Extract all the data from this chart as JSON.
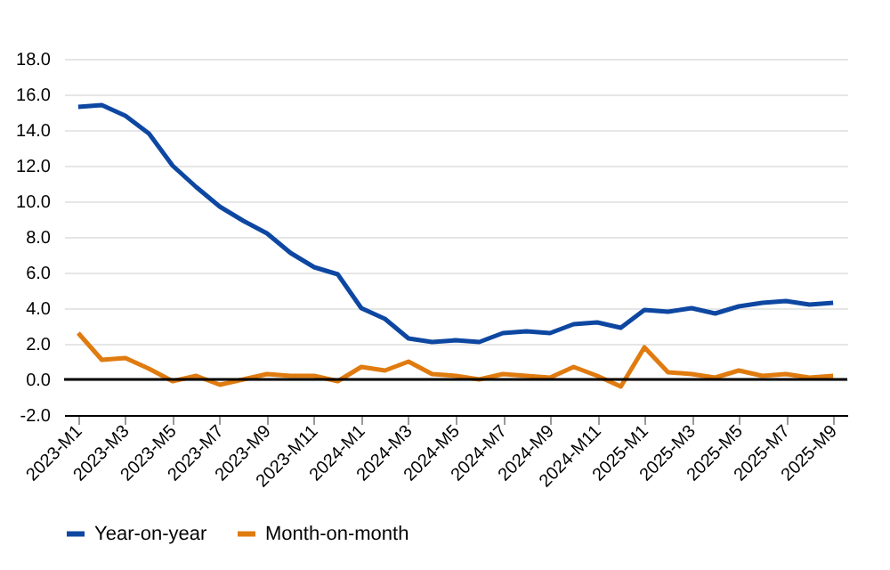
{
  "chart_data": {
    "type": "line",
    "categories": [
      "2023-M1",
      null,
      "2023-M3",
      null,
      "2023-M5",
      null,
      "2023-M7",
      null,
      "2023-M9",
      null,
      "2023-M11",
      null,
      "2024-M1",
      null,
      "2024-M3",
      null,
      "2024-M5",
      null,
      "2024-M7",
      null,
      "2024-M9",
      null,
      "2024-M11",
      null,
      "2025-M1",
      null,
      "2025-M3",
      null,
      "2025-M5",
      null,
      "2025-M7",
      null,
      "2025-M9"
    ],
    "series": [
      {
        "name": "Year-on-year",
        "color": "#0d47a1",
        "values": [
          15.3,
          15.4,
          14.8,
          13.8,
          12.0,
          10.8,
          9.7,
          8.9,
          8.2,
          7.1,
          6.3,
          5.9,
          4.0,
          3.4,
          2.3,
          2.1,
          2.2,
          2.1,
          2.6,
          2.7,
          2.6,
          3.1,
          3.2,
          2.9,
          3.9,
          3.8,
          4.0,
          3.7,
          4.1,
          4.3,
          4.4,
          4.2,
          4.3
        ]
      },
      {
        "name": "Month-on-month",
        "color": "#e07b10",
        "values": [
          2.6,
          1.1,
          1.2,
          0.6,
          -0.1,
          0.2,
          -0.3,
          0.0,
          0.3,
          0.2,
          0.2,
          -0.1,
          0.7,
          0.5,
          1.0,
          0.3,
          0.2,
          0.0,
          0.3,
          0.2,
          0.1,
          0.7,
          0.2,
          -0.4,
          1.8,
          0.4,
          0.3,
          0.1,
          0.5,
          0.2,
          0.3,
          0.1,
          0.2
        ]
      }
    ],
    "ylim": [
      -2,
      18
    ],
    "yticks": [
      {
        "value": -2,
        "label": "-2.0"
      },
      {
        "value": 0,
        "label": "0.0"
      },
      {
        "value": 2,
        "label": "2.0"
      },
      {
        "value": 4,
        "label": "4.0"
      },
      {
        "value": 6,
        "label": "6.0"
      },
      {
        "value": 8,
        "label": "8.0"
      },
      {
        "value": 10,
        "label": "10.0"
      },
      {
        "value": 12,
        "label": "12.0"
      },
      {
        "value": 14,
        "label": "14.0"
      },
      {
        "value": 16,
        "label": "16.0"
      },
      {
        "value": 18,
        "label": "18.0"
      }
    ],
    "ref_lines": [
      {
        "axis": "y",
        "value": 0,
        "color": "#000000"
      }
    ],
    "grid": "y",
    "legend": "bottom",
    "line_style": "solid",
    "marker": "none"
  }
}
